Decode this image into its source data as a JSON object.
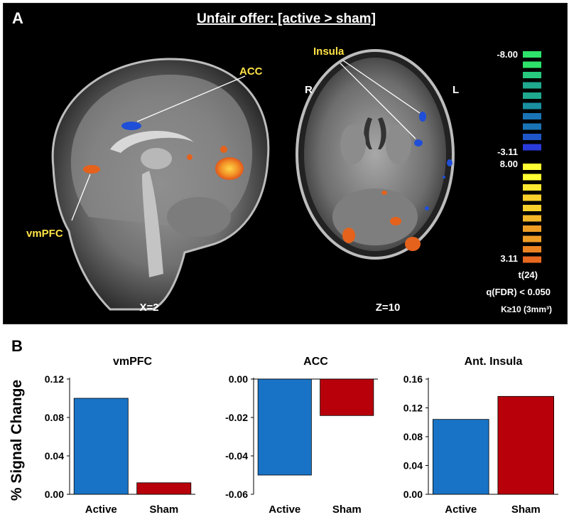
{
  "panel_a": {
    "label": "A",
    "title": "Unfair offer: [active > sham]",
    "sagittal": {
      "coord_label": "X=2",
      "roi_labels": [
        "ACC",
        "vmPFC"
      ]
    },
    "axial": {
      "coord_label": "Z=10",
      "roi_label": "Insula",
      "side_right": "R",
      "side_left": "L"
    },
    "colorbar": {
      "neg_max": "-8.00",
      "neg_min": "-3.11",
      "pos_max": "8.00",
      "pos_min": "3.11",
      "stat": "t(24)",
      "threshold": "q(FDR) < 0.050",
      "cluster": "K≥10 (3mm³)"
    },
    "colors": {
      "negative": [
        "#2ee36a",
        "#27c97e",
        "#1fa98f",
        "#1a8fa0",
        "#1a73b4",
        "#1f56c8",
        "#2a3bdc"
      ],
      "positive": [
        "#ffff33",
        "#fbe830",
        "#f7d02c",
        "#f3b629",
        "#ef9c25",
        "#eb8222",
        "#e7681f"
      ]
    }
  },
  "panel_b": {
    "label": "B",
    "y_axis_label": "% Signal Change"
  },
  "chart_data": [
    {
      "type": "bar",
      "title": "vmPFC",
      "categories": [
        "Active",
        "Sham"
      ],
      "values": [
        0.1,
        0.012
      ],
      "ylim": [
        0,
        0.12
      ],
      "yticks": [
        "0.00",
        "0.04",
        "0.08",
        "0.12"
      ],
      "ytick_values": [
        0,
        0.04,
        0.08,
        0.12
      ],
      "colors": [
        "#1873c6",
        "#b8000a"
      ]
    },
    {
      "type": "bar",
      "title": "ACC",
      "categories": [
        "Active",
        "Sham"
      ],
      "values": [
        -0.05,
        -0.019
      ],
      "ylim": [
        -0.06,
        0
      ],
      "yticks": [
        "-0.06",
        "-0.04",
        "-0.02",
        "0.00"
      ],
      "ytick_values": [
        -0.06,
        -0.04,
        -0.02,
        0
      ],
      "colors": [
        "#1873c6",
        "#b8000a"
      ]
    },
    {
      "type": "bar",
      "title": "Ant. Insula",
      "categories": [
        "Active",
        "Sham"
      ],
      "values": [
        0.104,
        0.136
      ],
      "ylim": [
        0,
        0.16
      ],
      "yticks": [
        "0.00",
        "0.04",
        "0.08",
        "0.12",
        "0.16"
      ],
      "ytick_values": [
        0,
        0.04,
        0.08,
        0.12,
        0.16
      ],
      "colors": [
        "#1873c6",
        "#b8000a"
      ]
    }
  ]
}
